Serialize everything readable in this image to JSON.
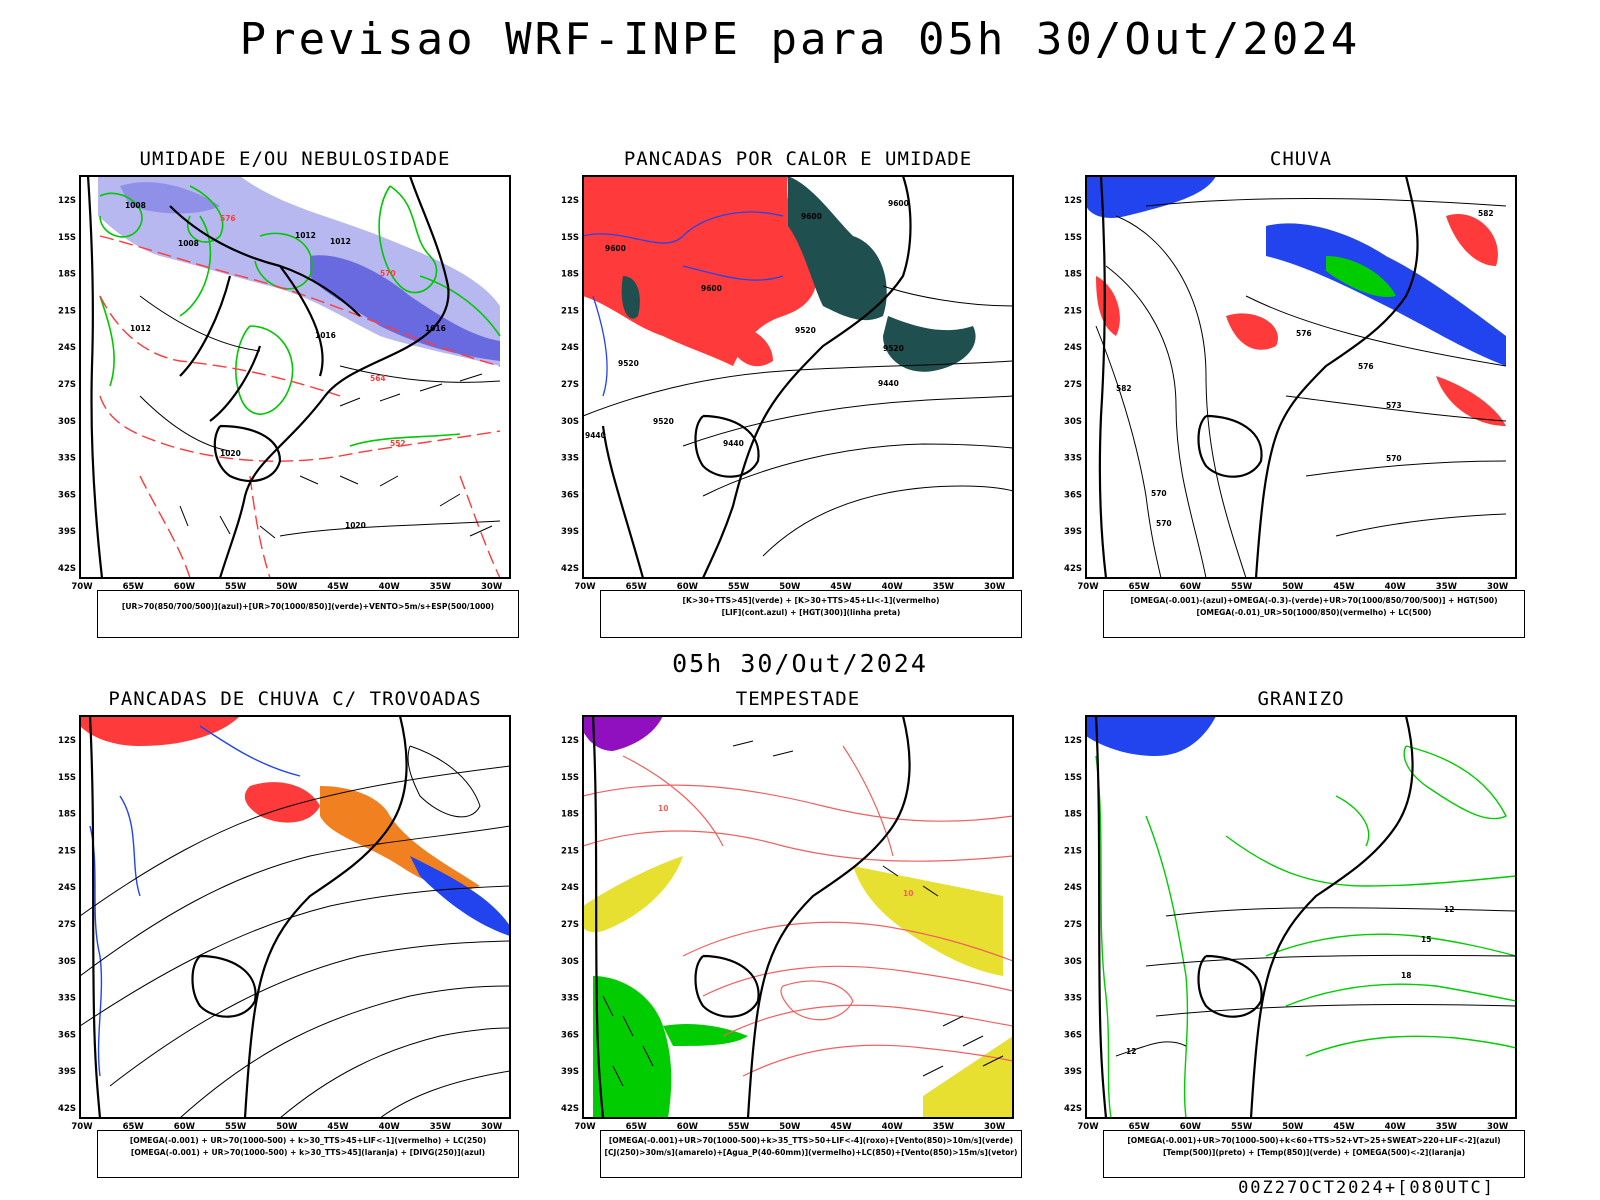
{
  "title": "Previsao WRF-INPE  para 05h 30/Out/2024",
  "subtitle": "05h 30/Out/2024",
  "footer": "00Z27OCT2024+[080UTC]",
  "axes": {
    "lat_labels": [
      "12S",
      "15S",
      "18S",
      "21S",
      "24S",
      "27S",
      "30S",
      "33S",
      "36S",
      "39S",
      "42S"
    ],
    "lon_labels": [
      "70W",
      "65W",
      "60W",
      "55W",
      "50W",
      "45W",
      "40W",
      "35W",
      "30W"
    ]
  },
  "panels": [
    {
      "title": "UMIDADE E/OU NEBULOSIDADE",
      "legend": [
        "[UR>70(850/700/500)](azul)+[UR>70(1000/850)](verde)+VENTO>5m/s+ESP(500/1000)"
      ],
      "contour_labels": [
        "1008",
        "1008",
        "1012",
        "1012",
        "1012",
        "1016",
        "1016",
        "1020",
        "1020",
        "576",
        "570",
        "564",
        "552"
      ]
    },
    {
      "title": "PANCADAS POR CALOR E UMIDADE",
      "legend": [
        "[K>30+TTS>45](verde) + [K>30+TTS>45+LI<-1](vermelho)",
        "[LIF](cont.azul) + [HGT(300)](linha preta)"
      ],
      "contour_labels": [
        "9600",
        "9600",
        "9600",
        "9600",
        "9520",
        "9520",
        "9520",
        "9520",
        "9440",
        "9440",
        "9440"
      ]
    },
    {
      "title": "CHUVA",
      "legend": [
        "[OMEGA(-0.001)-(azul)+OMEGA(-0.3)-(verde)+UR>70(1000/850/700/500)] + HGT(500)",
        "[OMEGA(-0.01)_UR>50(1000/850)(vermelho) + LC(500)"
      ],
      "contour_labels": [
        "582",
        "576",
        "576",
        "573",
        "570",
        "570",
        "570",
        "582"
      ]
    },
    {
      "title": "PANCADAS DE CHUVA C/ TROVOADAS",
      "legend": [
        "[OMEGA(-0.001) + UR>70(1000-500) + k>30_TTS>45+LIF<-1](vermelho) + LC(250)",
        "[OMEGA(-0.001) + UR>70(1000-500) + k>30_TTS>45](laranja) + [DIVG(250)](azul)"
      ],
      "contour_labels": []
    },
    {
      "title": "TEMPESTADE",
      "legend": [
        "[OMEGA(-0.001)+UR>70(1000-500)+k>35_TTS>50+LIF<-4](roxo)+[Vento(850)>10m/s](verde)",
        "[CJ(250)>30m/s](amarelo)+[Agua_P(40-60mm)](vermelho)+LC(850)+[Vento(850)>15m/s](vetor)"
      ],
      "contour_labels": [
        "10",
        "10"
      ]
    },
    {
      "title": "GRANIZO",
      "legend": [
        "[OMEGA(-0.001)+UR>70(1000-500)+k<60+TTS>52+VT>25+SWEAT>220+LIF<-2](azul)",
        "[Temp(500)](preto) + [Temp(850)](verde) + [OMEGA(500)<-2](laranja)"
      ],
      "contour_labels": [
        "12",
        "15",
        "18",
        "12"
      ]
    }
  ],
  "colors": {
    "red": "#ff3a3a",
    "green": "#00cc00",
    "blue": "#2244ee",
    "light_blue": "#b8b8f0",
    "mid_blue": "#7070e0",
    "dark_teal": "#1f4f4f",
    "orange": "#f08020",
    "yellow": "#e8e030",
    "purple": "#9010c0",
    "salmon": "#f06060"
  }
}
